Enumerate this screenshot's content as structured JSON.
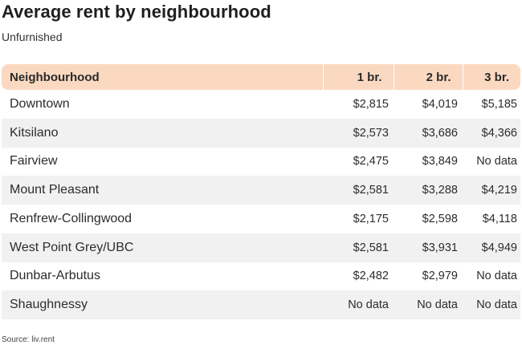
{
  "title": "Average rent by neighbourhood",
  "subtitle": "Unfurnished",
  "source": "Source: liv.rent",
  "colors": {
    "header_bg": "#fbd9c1",
    "alt_row_bg": "#f1f1f1"
  },
  "chart_data": {
    "type": "table",
    "title": "Average rent by neighbourhood",
    "subtitle": "Unfurnished",
    "columns": [
      "Neighbourhood",
      "1 br.",
      "2 br.",
      "3 br."
    ],
    "rows": [
      [
        "Downtown",
        "$2,815",
        "$4,019",
        "$5,185"
      ],
      [
        "Kitsilano",
        "$2,573",
        "$3,686",
        "$4,366"
      ],
      [
        "Fairview",
        "$2,475",
        "$3,849",
        "No data"
      ],
      [
        "Mount Pleasant",
        "$2,581",
        "$3,288",
        "$4,219"
      ],
      [
        "Renfrew-Collingwood",
        "$2,175",
        "$2,598",
        "$4,118"
      ],
      [
        "West Point Grey/UBC",
        "$2,581",
        "$3,931",
        "$4,949"
      ],
      [
        "Dunbar-Arbutus",
        "$2,482",
        "$2,979",
        "No data"
      ],
      [
        "Shaughnessy",
        "No data",
        "No data",
        "No data"
      ]
    ]
  }
}
